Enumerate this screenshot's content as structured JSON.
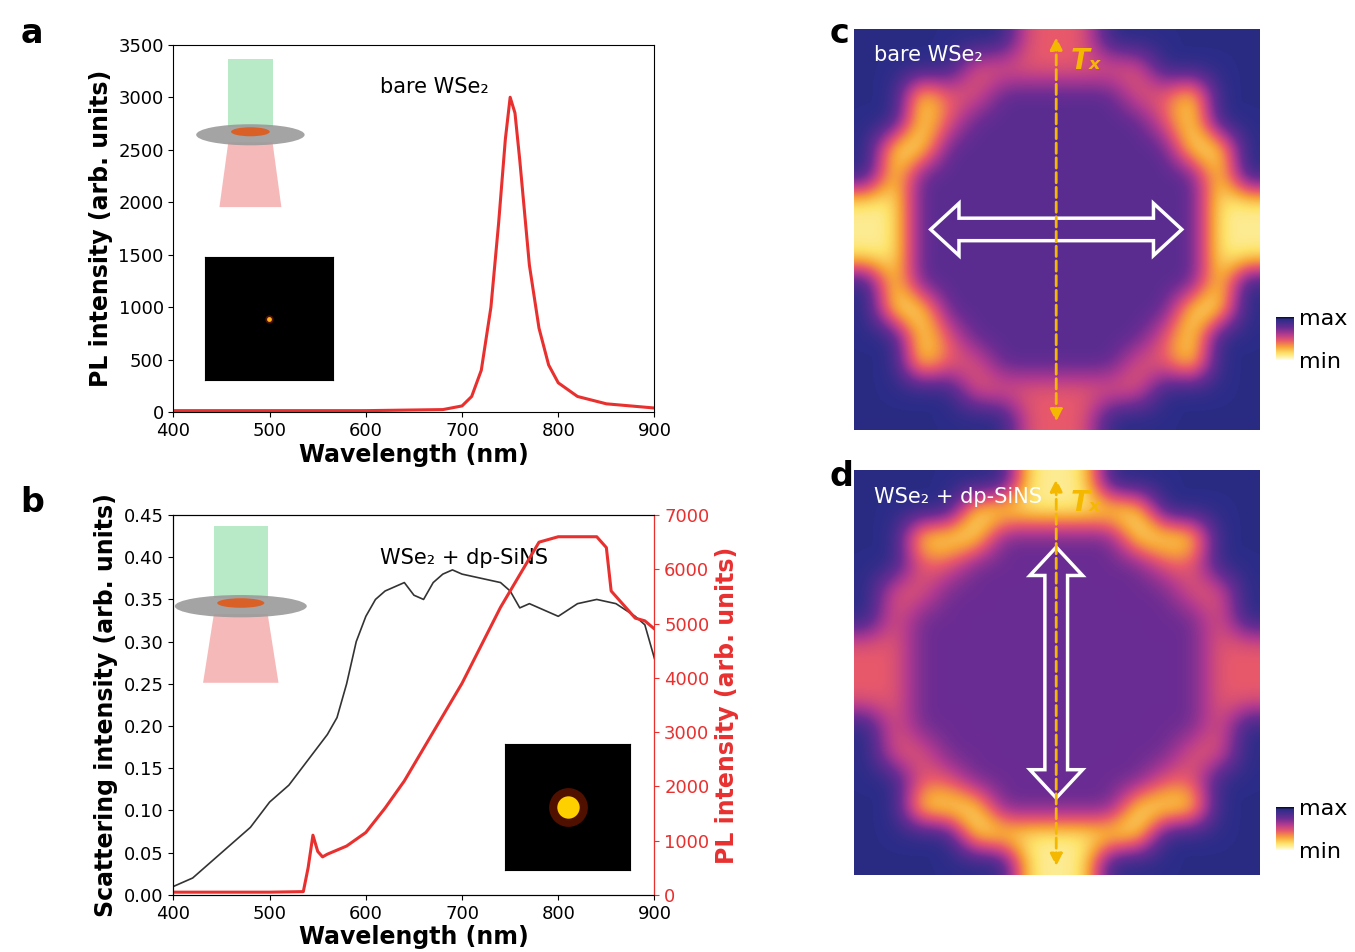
{
  "chart_data": [
    {
      "type": "line",
      "panel": "a",
      "annotation": "bare WSe₂",
      "x_label": "Wavelength (nm)",
      "y_label": "PL intensity (arb. units)",
      "xlim": [
        400,
        900
      ],
      "xticks": [
        400,
        500,
        600,
        700,
        800,
        900
      ],
      "ylim": [
        0,
        3500
      ],
      "yticks": [
        0,
        500,
        1000,
        1500,
        2000,
        2500,
        3000,
        3500
      ],
      "series": [
        {
          "color": "#e8302f",
          "x": [
            400,
            500,
            600,
            680,
            700,
            710,
            720,
            730,
            738,
            745,
            750,
            755,
            760,
            765,
            770,
            780,
            790,
            800,
            820,
            850,
            900
          ],
          "values": [
            15,
            15,
            15,
            25,
            60,
            150,
            400,
            1000,
            1800,
            2600,
            3000,
            2850,
            2400,
            1900,
            1400,
            800,
            450,
            280,
            150,
            80,
            40
          ]
        }
      ]
    },
    {
      "type": "line",
      "panel": "b",
      "annotation": "WSe₂ + dp-SiNS",
      "x_label": "Wavelength (nm)",
      "y_label": "Scattering intensity (arb. units)",
      "y2_label": "PL intensity (arb. units)",
      "xlim": [
        400,
        900
      ],
      "xticks": [
        400,
        500,
        600,
        700,
        800,
        900
      ],
      "ylim": [
        0,
        0.45
      ],
      "yticks": [
        {
          "value": 0,
          "label": "0.00"
        },
        {
          "value": 0.05,
          "label": "0.05"
        },
        {
          "value": 0.1,
          "label": "0.10"
        },
        {
          "value": 0.15,
          "label": "0.15"
        },
        {
          "value": 0.2,
          "label": "0.20"
        },
        {
          "value": 0.25,
          "label": "0.25"
        },
        {
          "value": 0.3,
          "label": "0.30"
        },
        {
          "value": 0.35,
          "label": "0.35"
        },
        {
          "value": 0.4,
          "label": "0.40"
        },
        {
          "value": 0.45,
          "label": "0.45"
        }
      ],
      "y2lim": [
        0,
        7000
      ],
      "y2ticks": [
        0,
        1000,
        2000,
        3000,
        4000,
        5000,
        6000,
        7000
      ],
      "series": [
        {
          "color": "#333333",
          "x": [
            400,
            420,
            440,
            460,
            480,
            500,
            520,
            540,
            560,
            570,
            580,
            590,
            600,
            610,
            620,
            630,
            640,
            650,
            660,
            670,
            680,
            690,
            700,
            720,
            740,
            750,
            760,
            770,
            780,
            800,
            820,
            840,
            860,
            880,
            890,
            900
          ],
          "values": [
            0.01,
            0.02,
            0.04,
            0.06,
            0.08,
            0.11,
            0.13,
            0.16,
            0.19,
            0.21,
            0.25,
            0.3,
            0.33,
            0.35,
            0.36,
            0.365,
            0.37,
            0.355,
            0.35,
            0.37,
            0.38,
            0.385,
            0.38,
            0.375,
            0.37,
            0.36,
            0.34,
            0.345,
            0.34,
            0.33,
            0.345,
            0.35,
            0.345,
            0.33,
            0.32,
            0.28
          ]
        },
        {
          "color": "#e8302f",
          "axis": "y2",
          "x": [
            400,
            500,
            535,
            540,
            545,
            550,
            555,
            560,
            580,
            600,
            620,
            640,
            660,
            680,
            700,
            720,
            740,
            760,
            780,
            800,
            820,
            840,
            850,
            855,
            870,
            880,
            890,
            900
          ],
          "values": [
            50,
            50,
            60,
            500,
            1100,
            800,
            700,
            750,
            900,
            1150,
            1600,
            2100,
            2700,
            3300,
            3900,
            4600,
            5300,
            5900,
            6500,
            6600,
            6600,
            6600,
            6400,
            5600,
            5300,
            5100,
            5050,
            4900
          ]
        }
      ]
    },
    {
      "type": "heatmap",
      "panel": "c",
      "annotations": [
        "bare WSe₂",
        "Tₓ"
      ],
      "tick_labels": false,
      "colorbar_range": [
        0,
        1
      ],
      "colorbar_ticks": [
        {
          "value": 1,
          "label": "max"
        },
        {
          "value": 0,
          "label": "min"
        }
      ],
      "cells": [
        [
          0.95,
          0.95,
          0.95,
          0.95,
          0.95,
          0.95,
          0.45,
          0.45,
          0.45,
          0.95,
          0.95,
          0.95,
          0.95,
          0.95,
          0.95
        ],
        [
          0.95,
          0.95,
          0.95,
          0.95,
          0.45,
          0.45,
          0.45,
          0.45,
          0.45,
          0.45,
          0.45,
          0.95,
          0.95,
          0.95,
          0.95
        ],
        [
          0.95,
          0.95,
          0.1,
          0.45,
          0.45,
          0.8,
          0.8,
          0.8,
          0.8,
          0.8,
          0.45,
          0.45,
          0.1,
          0.95,
          0.95
        ],
        [
          0.95,
          0.95,
          0.1,
          0.45,
          0.8,
          0.8,
          0.8,
          0.8,
          0.8,
          0.8,
          0.8,
          0.45,
          0.1,
          0.95,
          0.95
        ],
        [
          0.95,
          0.1,
          0.1,
          0.8,
          0.8,
          0.8,
          0.8,
          0.8,
          0.8,
          0.8,
          0.8,
          0.8,
          0.1,
          0.1,
          0.95
        ],
        [
          0.95,
          0.1,
          0.8,
          0.8,
          0.8,
          0.8,
          0.8,
          0.8,
          0.8,
          0.8,
          0.8,
          0.8,
          0.8,
          0.1,
          0.95
        ],
        [
          0.1,
          0.1,
          0.8,
          0.8,
          0.8,
          0.8,
          0.8,
          0.8,
          0.8,
          0.8,
          0.8,
          0.8,
          0.8,
          0.1,
          0.1
        ],
        [
          0.1,
          0.1,
          0.8,
          0.8,
          0.8,
          0.8,
          0.8,
          0.8,
          0.8,
          0.8,
          0.8,
          0.8,
          0.8,
          0.1,
          0.1
        ],
        [
          0.1,
          0.1,
          0.8,
          0.8,
          0.8,
          0.8,
          0.8,
          0.8,
          0.8,
          0.8,
          0.8,
          0.8,
          0.8,
          0.1,
          0.1
        ],
        [
          0.95,
          0.1,
          0.8,
          0.8,
          0.8,
          0.8,
          0.8,
          0.8,
          0.8,
          0.8,
          0.8,
          0.8,
          0.8,
          0.1,
          0.95
        ],
        [
          0.95,
          0.1,
          0.1,
          0.8,
          0.8,
          0.8,
          0.8,
          0.8,
          0.8,
          0.8,
          0.8,
          0.8,
          0.1,
          0.1,
          0.95
        ],
        [
          0.95,
          0.95,
          0.1,
          0.45,
          0.8,
          0.8,
          0.8,
          0.8,
          0.8,
          0.8,
          0.8,
          0.45,
          0.1,
          0.95,
          0.95
        ],
        [
          0.95,
          0.95,
          0.1,
          0.45,
          0.45,
          0.8,
          0.8,
          0.8,
          0.8,
          0.8,
          0.45,
          0.45,
          0.1,
          0.95,
          0.95
        ],
        [
          0.95,
          0.95,
          0.95,
          0.95,
          0.45,
          0.45,
          0.45,
          0.45,
          0.45,
          0.45,
          0.45,
          0.95,
          0.95,
          0.95,
          0.95
        ],
        [
          0.95,
          0.95,
          0.95,
          0.95,
          0.95,
          0.95,
          0.45,
          0.45,
          0.45,
          0.95,
          0.95,
          0.95,
          0.95,
          0.95,
          0.95
        ]
      ]
    },
    {
      "type": "heatmap",
      "panel": "d",
      "annotations": [
        "WSe₂ + dp-SiNS",
        "Tₓ"
      ],
      "tick_labels": false,
      "colorbar_range": [
        0,
        1
      ],
      "colorbar_ticks": [
        {
          "value": 1,
          "label": "max"
        },
        {
          "value": 0,
          "label": "min"
        }
      ],
      "cells": [
        [
          0.95,
          0.95,
          0.95,
          0.95,
          0.95,
          0.95,
          0.1,
          0.1,
          0.1,
          0.95,
          0.95,
          0.95,
          0.95,
          0.95,
          0.95
        ],
        [
          0.95,
          0.95,
          0.95,
          0.95,
          0.1,
          0.1,
          0.1,
          0.1,
          0.1,
          0.1,
          0.1,
          0.95,
          0.95,
          0.95,
          0.95
        ],
        [
          0.95,
          0.95,
          0.1,
          0.1,
          0.1,
          0.75,
          0.75,
          0.75,
          0.75,
          0.75,
          0.1,
          0.1,
          0.1,
          0.95,
          0.95
        ],
        [
          0.95,
          0.95,
          0.45,
          0.45,
          0.75,
          0.75,
          0.75,
          0.75,
          0.75,
          0.75,
          0.75,
          0.45,
          0.45,
          0.95,
          0.95
        ],
        [
          0.95,
          0.45,
          0.45,
          0.75,
          0.75,
          0.75,
          0.75,
          0.75,
          0.75,
          0.75,
          0.75,
          0.75,
          0.45,
          0.45,
          0.95
        ],
        [
          0.95,
          0.45,
          0.75,
          0.75,
          0.75,
          0.75,
          0.75,
          0.75,
          0.75,
          0.75,
          0.75,
          0.75,
          0.75,
          0.45,
          0.95
        ],
        [
          0.45,
          0.45,
          0.75,
          0.75,
          0.75,
          0.75,
          0.75,
          0.75,
          0.75,
          0.75,
          0.75,
          0.75,
          0.75,
          0.45,
          0.45
        ],
        [
          0.45,
          0.45,
          0.75,
          0.75,
          0.75,
          0.75,
          0.75,
          0.75,
          0.75,
          0.75,
          0.75,
          0.75,
          0.75,
          0.45,
          0.45
        ],
        [
          0.45,
          0.45,
          0.75,
          0.75,
          0.75,
          0.75,
          0.75,
          0.75,
          0.75,
          0.75,
          0.75,
          0.75,
          0.75,
          0.45,
          0.45
        ],
        [
          0.95,
          0.45,
          0.75,
          0.75,
          0.75,
          0.75,
          0.75,
          0.75,
          0.75,
          0.75,
          0.75,
          0.75,
          0.75,
          0.45,
          0.95
        ],
        [
          0.95,
          0.45,
          0.45,
          0.75,
          0.75,
          0.75,
          0.75,
          0.75,
          0.75,
          0.75,
          0.75,
          0.75,
          0.45,
          0.45,
          0.95
        ],
        [
          0.95,
          0.95,
          0.45,
          0.45,
          0.75,
          0.75,
          0.75,
          0.75,
          0.75,
          0.75,
          0.75,
          0.45,
          0.45,
          0.95,
          0.95
        ],
        [
          0.95,
          0.95,
          0.1,
          0.1,
          0.1,
          0.75,
          0.75,
          0.75,
          0.75,
          0.75,
          0.1,
          0.1,
          0.1,
          0.95,
          0.95
        ],
        [
          0.95,
          0.95,
          0.95,
          0.95,
          0.1,
          0.1,
          0.1,
          0.1,
          0.1,
          0.1,
          0.1,
          0.95,
          0.95,
          0.95,
          0.95
        ],
        [
          0.95,
          0.95,
          0.95,
          0.95,
          0.95,
          0.95,
          0.1,
          0.1,
          0.1,
          0.95,
          0.95,
          0.95,
          0.95,
          0.95,
          0.95
        ]
      ]
    }
  ]
}
